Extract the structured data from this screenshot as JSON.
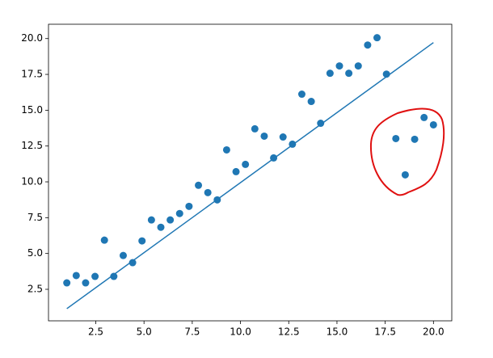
{
  "chart_data": {
    "type": "scatter",
    "series": [
      {
        "kind": "scatter",
        "color": "#1f77b4",
        "x": [
          1.0,
          1.487,
          1.974,
          2.462,
          2.949,
          3.436,
          3.923,
          4.41,
          4.897,
          5.385,
          5.872,
          6.359,
          6.846,
          7.333,
          7.821,
          8.308,
          8.795,
          9.282,
          9.769,
          10.256,
          10.744,
          11.231,
          11.718,
          12.205,
          12.692,
          13.179,
          13.667,
          14.154,
          14.641,
          15.128,
          15.615,
          16.103,
          16.59,
          17.077,
          17.564,
          18.051,
          18.538,
          19.026,
          19.513,
          20.0
        ],
        "values": [
          2.95,
          3.46,
          2.95,
          3.4,
          5.93,
          3.4,
          4.86,
          4.36,
          5.88,
          7.34,
          6.83,
          7.34,
          7.79,
          8.29,
          9.76,
          9.25,
          8.74,
          12.23,
          10.71,
          11.22,
          13.7,
          13.19,
          11.67,
          13.13,
          12.63,
          16.12,
          15.61,
          14.09,
          17.58,
          18.09,
          17.58,
          18.09,
          19.55,
          20.06,
          17.52,
          13.02,
          10.49,
          12.97,
          14.49,
          13.98
        ]
      },
      {
        "kind": "line",
        "color": "#1f77b4",
        "x": [
          1.0,
          20.0
        ],
        "values": [
          1.15,
          19.72
        ]
      }
    ],
    "xlim": [
      0.05,
      20.95
    ],
    "ylim": [
      0.3,
      21.0
    ],
    "xticks": [
      {
        "value": 2.5,
        "label": "2.5"
      },
      {
        "value": 5,
        "label": "5.0"
      },
      {
        "value": 7.5,
        "label": "7.5"
      },
      {
        "value": 10,
        "label": "10.0"
      },
      {
        "value": 12.5,
        "label": "12.5"
      },
      {
        "value": 15,
        "label": "15.0"
      },
      {
        "value": 17.5,
        "label": "17.5"
      },
      {
        "value": 20,
        "label": "20.0"
      }
    ],
    "yticks": [
      {
        "value": 2.5,
        "label": "2.5"
      },
      {
        "value": 5,
        "label": "5.0"
      },
      {
        "value": 7.5,
        "label": "7.5"
      },
      {
        "value": 10,
        "label": "10.0"
      },
      {
        "value": 12.5,
        "label": "12.5"
      },
      {
        "value": 15,
        "label": "15.0"
      },
      {
        "value": 17.5,
        "label": "17.5"
      },
      {
        "value": 20,
        "label": "20.0"
      }
    ],
    "grid": false
  }
}
